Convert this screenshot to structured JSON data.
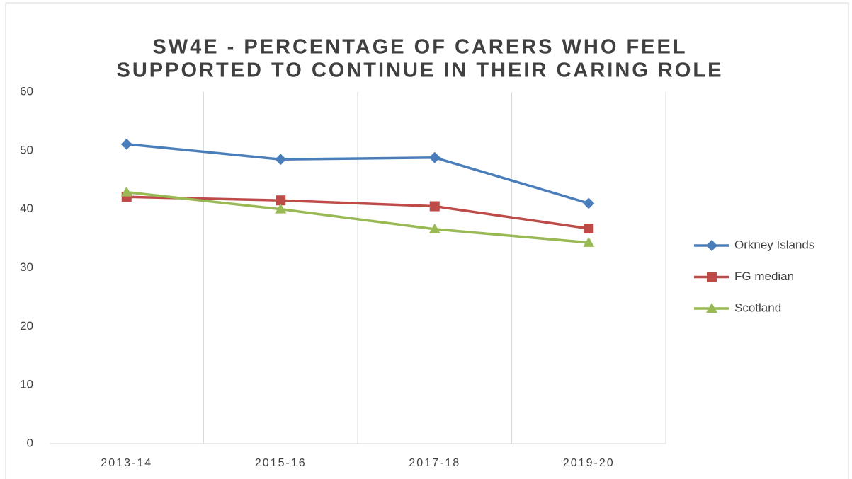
{
  "chart_data": {
    "type": "line",
    "title": [
      "SW4E - PERCENTAGE OF CARERS WHO FEEL",
      "SUPPORTED TO CONTINUE IN THEIR CARING ROLE"
    ],
    "categories": [
      "2013-14",
      "2015-16",
      "2017-18",
      "2019-20"
    ],
    "series": [
      {
        "name": "Orkney Islands",
        "color": "#4a7ebb",
        "marker": "diamond",
        "values": [
          51.1,
          48.5,
          48.8,
          41.0
        ]
      },
      {
        "name": "FG median",
        "color": "#be4b48",
        "marker": "square",
        "values": [
          42.1,
          41.5,
          40.5,
          36.7
        ]
      },
      {
        "name": "Scotland",
        "color": "#98b954",
        "marker": "triangle",
        "values": [
          42.9,
          40.0,
          36.6,
          34.3
        ]
      }
    ],
    "ylim": [
      0,
      60
    ],
    "yticks": [
      0,
      10,
      20,
      30,
      40,
      50,
      60
    ],
    "legend": "right"
  }
}
